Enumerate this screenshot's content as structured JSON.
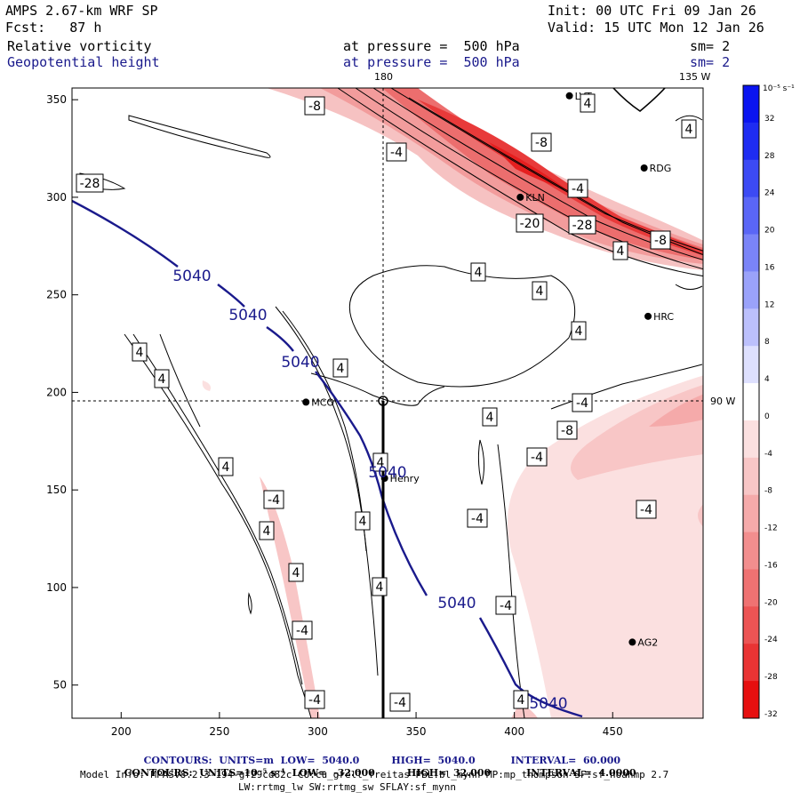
{
  "header": {
    "model": "AMPS 2.67-km WRF SP",
    "init": "Init: 00 UTC Fri 09 Jan 26",
    "fcst": "Fcst:   87 h",
    "valid": "Valid: 15 UTC Mon 12 Jan 26",
    "field1_name": "Relative vorticity",
    "field1_level": "at pressure =  500 hPa",
    "field1_sm": "sm= 2",
    "field2_name": "Geopotential height",
    "field2_level": "at pressure =  500 hPa",
    "field2_sm": "sm= 2"
  },
  "map": {
    "lon_label_180": "180",
    "lon_label_135w": "135 W",
    "lon_label_90w": "90 W",
    "stations": [
      {
        "name": "LVT",
        "x": 428,
        "y": 352
      },
      {
        "name": "RDG",
        "x": 466,
        "y": 315
      },
      {
        "name": "KLN",
        "x": 403,
        "y": 300
      },
      {
        "name": "HRC",
        "x": 468,
        "y": 239
      },
      {
        "name": "MCO",
        "x": 294,
        "y": 195
      },
      {
        "name": "Henry",
        "x": 334,
        "y": 156
      },
      {
        "name": "AG2",
        "x": 460,
        "y": 72
      }
    ],
    "height_contour_labels": [
      "5040",
      "5040",
      "5040",
      "5040",
      "5040",
      "5040"
    ],
    "vorticity_labels": [
      "-8",
      "4",
      "-4",
      "-8",
      "4",
      "-28",
      "-4",
      "-20",
      "-28",
      "-8",
      "4",
      "4",
      "4",
      "4",
      "4",
      "4",
      "4",
      "-4",
      "4",
      "-8",
      "4",
      "-4",
      "-4",
      "4",
      "4",
      "-4",
      "-4",
      "4",
      "4",
      "-4",
      "-4",
      "-4",
      "4",
      "-4",
      "4"
    ]
  },
  "axes": {
    "x_ticks": [
      200,
      250,
      300,
      350,
      400,
      450
    ],
    "y_ticks": [
      50,
      100,
      150,
      200,
      250,
      300,
      350
    ],
    "x_range": [
      175,
      496
    ],
    "y_range": [
      33,
      356
    ]
  },
  "colorbar": {
    "unit": "10⁻⁵ s⁻¹",
    "levels": [
      32,
      28,
      24,
      20,
      16,
      12,
      8,
      4,
      0,
      -4,
      -8,
      -12,
      -16,
      -20,
      -24,
      -28,
      -32
    ],
    "colors": [
      "#0a14f0",
      "#1e2cf2",
      "#3c4af4",
      "#5a66f6",
      "#7a84f8",
      "#9aa2fa",
      "#bcc0fc",
      "#dee0fe",
      "#ffffff",
      "#fbe0e0",
      "#f8c6c6",
      "#f5aaaa",
      "#f28e8e",
      "#ef7272",
      "#ec5454",
      "#e93434",
      "#e60f0f"
    ]
  },
  "footer": {
    "line1_units": "CONTOURS:  UNITS=m  LOW=  5040.0",
    "line1_high": "HIGH=  5040.0",
    "line1_interval": "INTERVAL=  60.000",
    "line2_units": "CONTOURS:  UNITS=10⁻⁵ s⁻¹  LOW=  -32.000",
    "line2_high": "HIGH=  32.000",
    "line2_interval": "INTERVAL=  4.0000",
    "model_info": "Model Info: MPASv8.2.3-194-gf29cd82c CU:cu_grell_freitas PBL:bl_mynn MP:mp_thompson SF:sf_noahmp 2.7",
    "model_info2": "LW:rrtmg_lw SW:rrtmg_sw SFLAY:sf_mynn"
  }
}
